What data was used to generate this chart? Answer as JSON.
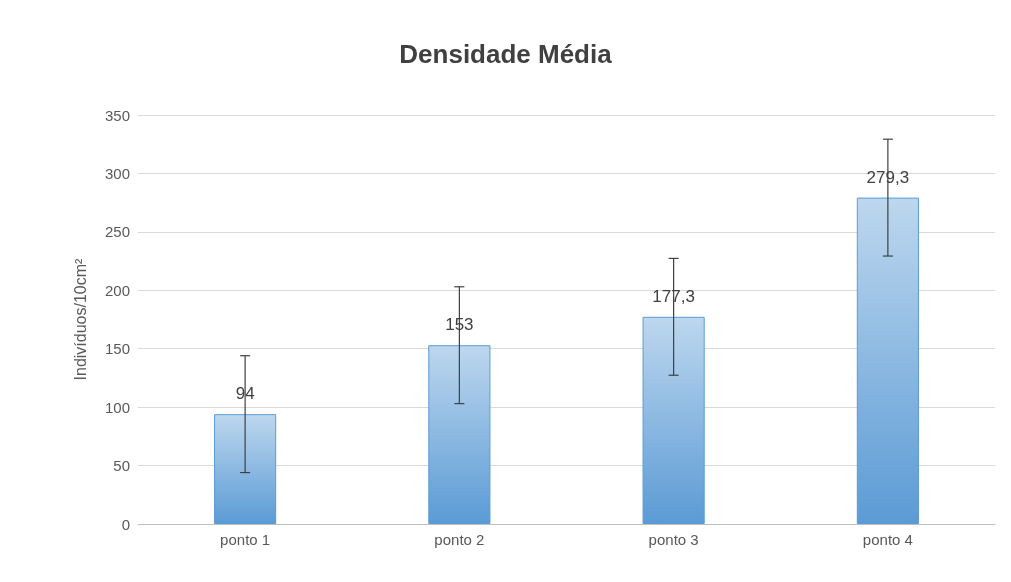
{
  "chart_data": {
    "type": "bar",
    "title": "Densidade Média",
    "ylabel": "Indivíduos/10cm²",
    "categories": [
      "ponto 1",
      "ponto 2",
      "ponto 3",
      "ponto 4"
    ],
    "values": [
      94,
      153,
      177.3,
      279.3
    ],
    "value_labels": [
      "94",
      "153",
      "177,3",
      "279,3"
    ],
    "errors": [
      50,
      50,
      50,
      50
    ],
    "color": "#5b9bd5",
    "ylim": [
      0,
      350
    ],
    "yticks": [
      0,
      50,
      100,
      150,
      200,
      250,
      300,
      350
    ],
    "grid": "y"
  }
}
